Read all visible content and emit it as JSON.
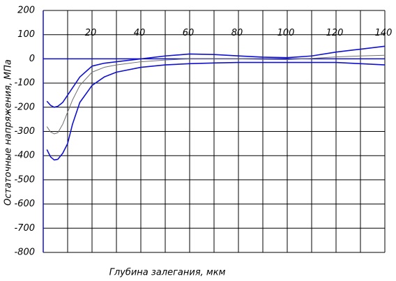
{
  "chart_data": {
    "type": "line",
    "x_label": "Глубина залегания, мкм",
    "y_label": "Остаточные напряжения, МПа",
    "x": [
      1.5,
      3,
      4.5,
      6,
      8,
      10,
      12,
      15,
      20,
      25,
      30,
      40,
      50,
      60,
      70,
      80,
      90,
      100,
      110,
      120,
      130,
      140
    ],
    "series": [
      {
        "color": "#1010d0",
        "values": [
          -175,
          -192,
          -200,
          -196,
          -180,
          -150,
          -120,
          -75,
          -30,
          -18,
          -12,
          0,
          12,
          20,
          18,
          12,
          7,
          5,
          12,
          28,
          40,
          52
        ]
      },
      {
        "color": "#707070",
        "values": [
          -280,
          -302,
          -310,
          -305,
          -270,
          -220,
          -170,
          -110,
          -55,
          -35,
          -25,
          -12,
          -5,
          0,
          0,
          0,
          -2,
          -3,
          2,
          8,
          12,
          15
        ]
      },
      {
        "color": "#1010d0",
        "values": [
          -375,
          -405,
          -418,
          -415,
          -390,
          -350,
          -270,
          -180,
          -110,
          -75,
          -55,
          -35,
          -25,
          -20,
          -17,
          -15,
          -15,
          -15,
          -15,
          -15,
          -20,
          -25
        ]
      }
    ],
    "xlim": [
      0,
      140
    ],
    "ylim": [
      -800,
      200
    ],
    "xticks": [
      20,
      40,
      60,
      80,
      100,
      120,
      140
    ],
    "xgrid": [
      10,
      30,
      50,
      70,
      90,
      110,
      130
    ],
    "yticks": [
      200,
      100,
      0,
      -100,
      -200,
      -300,
      -400,
      -500,
      -600,
      -700,
      -800
    ],
    "grid": true,
    "zero_line_color": "#1010d0"
  }
}
